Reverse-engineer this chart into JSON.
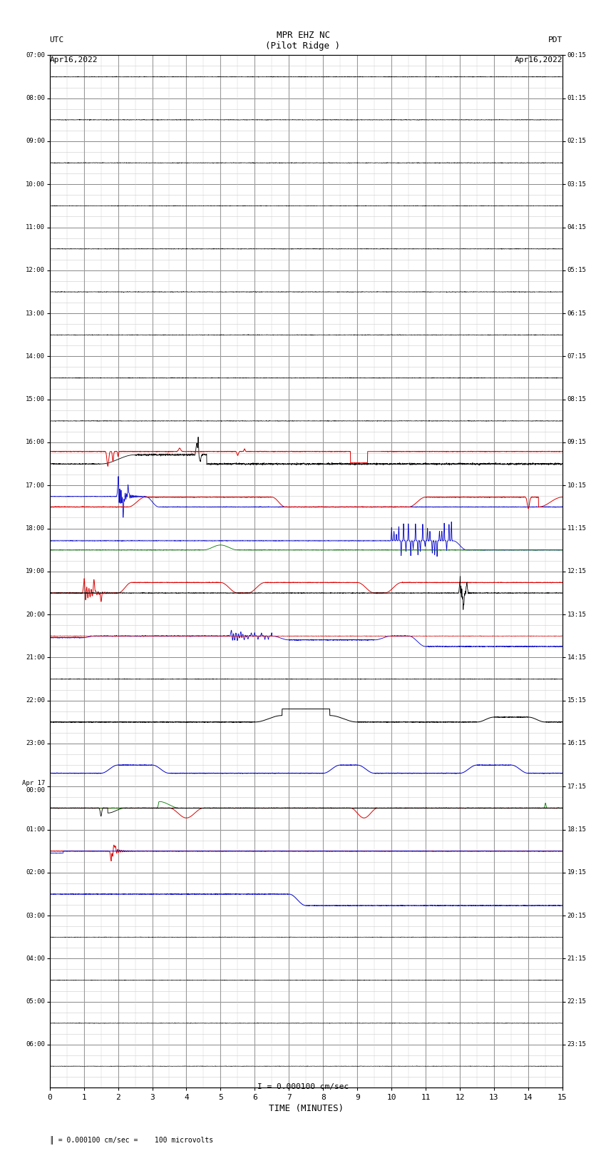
{
  "title_line1": "MPR EHZ NC",
  "title_line2": "(Pilot Ridge )",
  "scale_label": "I = 0.000100 cm/sec",
  "left_label_top": "UTC",
  "left_label_date": "Apr16,2022",
  "right_label_top": "PDT",
  "right_label_date": "Apr16,2022",
  "bottom_label": "TIME (MINUTES)",
  "footer_label": "= 0.000100 cm/sec =    100 microvolts",
  "utc_labels": [
    "07:00",
    "08:00",
    "09:00",
    "10:00",
    "11:00",
    "12:00",
    "13:00",
    "14:00",
    "15:00",
    "16:00",
    "17:00",
    "18:00",
    "19:00",
    "20:00",
    "21:00",
    "22:00",
    "23:00",
    "Apr 17\n00:00",
    "01:00",
    "02:00",
    "03:00",
    "04:00",
    "05:00",
    "06:00"
  ],
  "pdt_labels": [
    "00:15",
    "01:15",
    "02:15",
    "03:15",
    "04:15",
    "05:15",
    "06:15",
    "07:15",
    "08:15",
    "09:15",
    "10:15",
    "11:15",
    "12:15",
    "13:15",
    "14:15",
    "15:15",
    "16:15",
    "17:15",
    "18:15",
    "19:15",
    "20:15",
    "21:15",
    "22:15",
    "23:15"
  ],
  "n_rows": 24,
  "x_min": 0,
  "x_max": 15,
  "x_ticks": [
    0,
    1,
    2,
    3,
    4,
    5,
    6,
    7,
    8,
    9,
    10,
    11,
    12,
    13,
    14,
    15
  ],
  "bg_color": "#ffffff",
  "grid_major_color": "#888888",
  "grid_minor_color": "#cccccc",
  "trace_black": "#000000",
  "trace_red": "#dd0000",
  "trace_blue": "#0000cc",
  "trace_green": "#007700"
}
